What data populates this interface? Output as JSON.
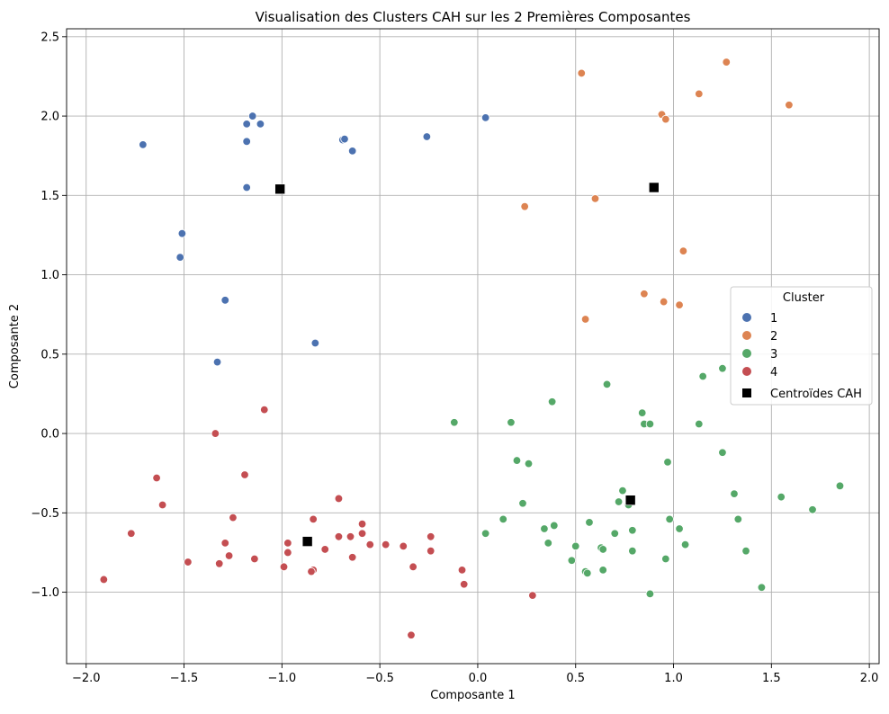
{
  "chart_data": {
    "type": "scatter",
    "title": "Visualisation des Clusters CAH sur les 2 Premières Composantes",
    "xlabel": "Composante 1",
    "ylabel": "Composante 2",
    "xlim": [
      -2.1,
      2.05
    ],
    "ylim": [
      -1.45,
      2.55
    ],
    "xticks": [
      -2.0,
      -1.5,
      -1.0,
      -0.5,
      0.0,
      0.5,
      1.0,
      1.5,
      2.0
    ],
    "xtick_labels": [
      "−2.0",
      "−1.5",
      "−1.0",
      "−0.5",
      "0.0",
      "0.5",
      "1.0",
      "1.5",
      "2.0"
    ],
    "yticks": [
      -1.0,
      -0.5,
      0.0,
      0.5,
      1.0,
      1.5,
      2.0,
      2.5
    ],
    "ytick_labels": [
      "−1.0",
      "−0.5",
      "0.0",
      "0.5",
      "1.0",
      "1.5",
      "2.0",
      "2.5"
    ],
    "grid": true,
    "legend": {
      "title": "Cluster",
      "placement": "center-right",
      "entries": [
        "1",
        "2",
        "3",
        "4",
        "Centroïdes CAH"
      ]
    },
    "series": [
      {
        "name": "1",
        "color": "#4c72b0",
        "marker": "circle",
        "points": [
          [
            -1.71,
            1.82
          ],
          [
            -1.18,
            1.95
          ],
          [
            -1.15,
            2.0
          ],
          [
            -1.11,
            1.95
          ],
          [
            -1.18,
            1.84
          ],
          [
            -0.69,
            1.85
          ],
          [
            -0.68,
            1.855
          ],
          [
            -0.64,
            1.78
          ],
          [
            -0.26,
            1.87
          ],
          [
            0.04,
            1.99
          ],
          [
            -1.18,
            1.55
          ],
          [
            -1.51,
            1.26
          ],
          [
            -1.52,
            1.11
          ],
          [
            -1.29,
            0.84
          ],
          [
            -0.83,
            0.57
          ],
          [
            -1.33,
            0.45
          ]
        ]
      },
      {
        "name": "2",
        "color": "#dd8452",
        "marker": "circle",
        "points": [
          [
            0.53,
            2.27
          ],
          [
            1.27,
            2.34
          ],
          [
            0.94,
            2.01
          ],
          [
            0.96,
            1.98
          ],
          [
            1.13,
            2.14
          ],
          [
            1.59,
            2.07
          ],
          [
            0.24,
            1.43
          ],
          [
            0.6,
            1.48
          ],
          [
            1.05,
            1.15
          ],
          [
            0.85,
            0.88
          ],
          [
            0.95,
            0.83
          ],
          [
            1.03,
            0.81
          ],
          [
            0.55,
            0.72
          ]
        ]
      },
      {
        "name": "3",
        "color": "#55a868",
        "marker": "circle",
        "points": [
          [
            -0.12,
            0.07
          ],
          [
            0.17,
            0.07
          ],
          [
            0.38,
            0.2
          ],
          [
            0.66,
            0.31
          ],
          [
            0.84,
            0.13
          ],
          [
            0.85,
            0.06
          ],
          [
            0.88,
            0.06
          ],
          [
            1.13,
            0.06
          ],
          [
            1.15,
            0.36
          ],
          [
            1.25,
            0.41
          ],
          [
            0.2,
            -0.17
          ],
          [
            0.26,
            -0.19
          ],
          [
            0.97,
            -0.18
          ],
          [
            1.25,
            -0.12
          ],
          [
            0.23,
            -0.44
          ],
          [
            0.13,
            -0.54
          ],
          [
            0.04,
            -0.63
          ],
          [
            0.34,
            -0.6
          ],
          [
            0.39,
            -0.58
          ],
          [
            0.36,
            -0.69
          ],
          [
            0.57,
            -0.56
          ],
          [
            0.5,
            -0.71
          ],
          [
            0.48,
            -0.8
          ],
          [
            0.63,
            -0.72
          ],
          [
            0.64,
            -0.73
          ],
          [
            0.55,
            -0.87
          ],
          [
            0.56,
            -0.88
          ],
          [
            0.64,
            -0.86
          ],
          [
            0.7,
            -0.63
          ],
          [
            0.72,
            -0.43
          ],
          [
            0.74,
            -0.36
          ],
          [
            0.77,
            -0.45
          ],
          [
            0.79,
            -0.61
          ],
          [
            0.79,
            -0.74
          ],
          [
            0.96,
            -0.79
          ],
          [
            0.98,
            -0.54
          ],
          [
            1.03,
            -0.6
          ],
          [
            1.06,
            -0.7
          ],
          [
            0.88,
            -1.01
          ],
          [
            1.31,
            -0.38
          ],
          [
            1.33,
            -0.54
          ],
          [
            1.37,
            -0.74
          ],
          [
            1.45,
            -0.97
          ],
          [
            1.55,
            -0.4
          ],
          [
            1.71,
            -0.48
          ],
          [
            1.85,
            -0.33
          ]
        ]
      },
      {
        "name": "4",
        "color": "#c44e52",
        "marker": "circle",
        "points": [
          [
            -1.09,
            0.15
          ],
          [
            -1.34,
            0.0
          ],
          [
            -1.64,
            -0.28
          ],
          [
            -1.61,
            -0.45
          ],
          [
            -1.19,
            -0.26
          ],
          [
            -1.25,
            -0.53
          ],
          [
            -1.77,
            -0.63
          ],
          [
            -1.91,
            -0.92
          ],
          [
            -1.48,
            -0.81
          ],
          [
            -1.32,
            -0.82
          ],
          [
            -1.29,
            -0.69
          ],
          [
            -1.27,
            -0.77
          ],
          [
            -1.14,
            -0.79
          ],
          [
            -0.99,
            -0.84
          ],
          [
            -0.97,
            -0.69
          ],
          [
            -0.97,
            -0.75
          ],
          [
            -0.84,
            -0.86
          ],
          [
            -0.85,
            -0.87
          ],
          [
            -0.84,
            -0.54
          ],
          [
            -0.78,
            -0.73
          ],
          [
            -0.71,
            -0.65
          ],
          [
            -0.71,
            -0.41
          ],
          [
            -0.65,
            -0.65
          ],
          [
            -0.64,
            -0.78
          ],
          [
            -0.59,
            -0.57
          ],
          [
            -0.59,
            -0.63
          ],
          [
            -0.55,
            -0.7
          ],
          [
            -0.47,
            -0.7
          ],
          [
            -0.38,
            -0.71
          ],
          [
            -0.33,
            -0.84
          ],
          [
            -0.34,
            -1.27
          ],
          [
            -0.24,
            -0.65
          ],
          [
            -0.24,
            -0.74
          ],
          [
            -0.08,
            -0.86
          ],
          [
            -0.07,
            -0.95
          ],
          [
            0.28,
            -1.02
          ]
        ]
      }
    ],
    "centroids": {
      "name": "Centroïdes CAH",
      "color": "#000000",
      "marker": "square",
      "points": [
        [
          -1.01,
          1.54
        ],
        [
          0.9,
          1.55
        ],
        [
          0.78,
          -0.42
        ],
        [
          -0.87,
          -0.68
        ]
      ]
    }
  }
}
